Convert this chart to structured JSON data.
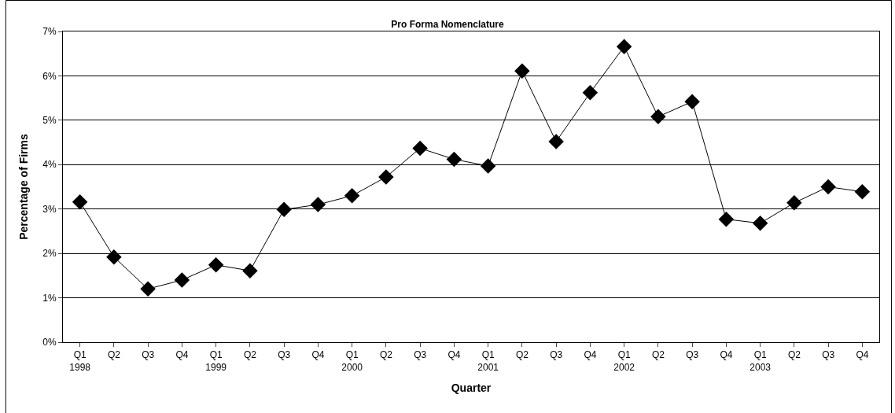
{
  "chart_data": {
    "type": "line",
    "title": "Pro Forma Nomenclature",
    "xlabel": "Quarter",
    "ylabel": "Percentage of Firms",
    "categories": [
      "Q1\n1998",
      "Q2",
      "Q3",
      "Q4",
      "Q1\n1999",
      "Q2",
      "Q3",
      "Q4",
      "Q1\n2000",
      "Q2",
      "Q3",
      "Q4",
      "Q1\n2001",
      "Q2",
      "Q3",
      "Q4",
      "Q1\n2002",
      "Q2",
      "Q3",
      "Q4",
      "Q1\n2003",
      "Q2",
      "Q3",
      "Q4"
    ],
    "series": [
      {
        "color": "#000000",
        "values": [
          3.16,
          1.92,
          1.2,
          1.4,
          1.74,
          1.61,
          2.99,
          3.1,
          3.3,
          3.72,
          4.37,
          4.12,
          3.97,
          6.11,
          4.52,
          5.62,
          6.66,
          5.08,
          5.42,
          2.77,
          2.68,
          3.14,
          3.5,
          3.39
        ]
      }
    ],
    "ylim": [
      0,
      7
    ],
    "yticks": [
      {
        "value": 0,
        "label": "0%"
      },
      {
        "value": 1,
        "label": "1%"
      },
      {
        "value": 2,
        "label": "2%"
      },
      {
        "value": 3,
        "label": "3%"
      },
      {
        "value": 4,
        "label": "4%"
      },
      {
        "value": 5,
        "label": "5%"
      },
      {
        "value": 6,
        "label": "6%"
      },
      {
        "value": 7,
        "label": "7%"
      }
    ],
    "grid": "y",
    "legend": false,
    "marker": "diamond",
    "line_style": "solid"
  }
}
